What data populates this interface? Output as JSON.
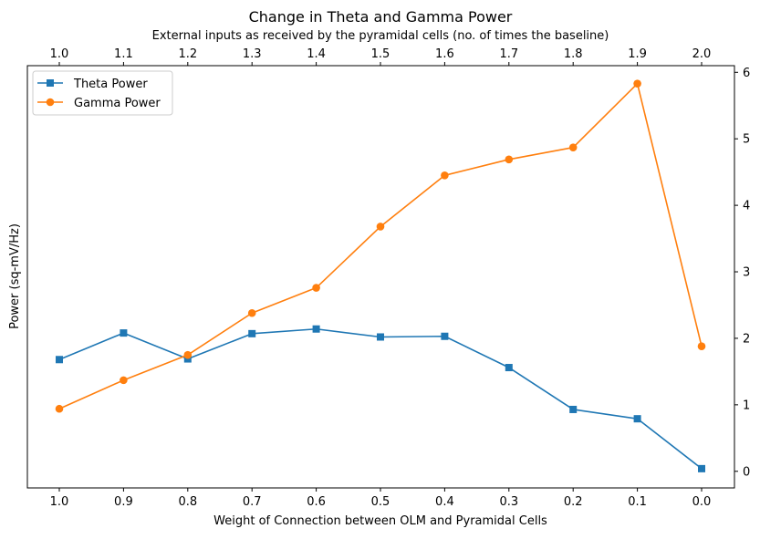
{
  "chart_data": {
    "type": "line",
    "title": "Change in Theta and Gamma Power",
    "xlabel": "Weight of Connection between OLM and Pyramidal Cells",
    "top_xlabel": "External inputs as received by the pyramidal cells (no. of times the baseline)",
    "ylabel": "Power (sq-mV/Hz)",
    "x_bottom_ticks": [
      "1.0",
      "0.9",
      "0.8",
      "0.7",
      "0.6",
      "0.5",
      "0.4",
      "0.3",
      "0.2",
      "0.1",
      "0.0"
    ],
    "x_top_ticks": [
      "1.0",
      "1.1",
      "1.2",
      "1.3",
      "1.4",
      "1.5",
      "1.6",
      "1.7",
      "1.8",
      "1.9",
      "2.0"
    ],
    "y_right_ticks": [
      "0",
      "1",
      "2",
      "3",
      "4",
      "5",
      "6"
    ],
    "x": [
      1.0,
      0.9,
      0.8,
      0.7,
      0.6,
      0.5,
      0.4,
      0.3,
      0.2,
      0.1,
      0.0
    ],
    "ylim": [
      -0.25,
      6.1
    ],
    "legend_position": "top-left",
    "grid": false,
    "series": [
      {
        "name": "Theta Power",
        "color": "#1f77b4",
        "marker": "square",
        "values": [
          1.68,
          2.08,
          1.69,
          2.07,
          2.14,
          2.02,
          2.03,
          1.56,
          0.93,
          0.79,
          0.04
        ]
      },
      {
        "name": "Gamma Power",
        "color": "#ff7f0e",
        "marker": "circle",
        "values": [
          0.94,
          1.37,
          1.75,
          2.38,
          2.76,
          3.68,
          4.45,
          4.69,
          4.87,
          5.83,
          1.88
        ]
      }
    ]
  }
}
